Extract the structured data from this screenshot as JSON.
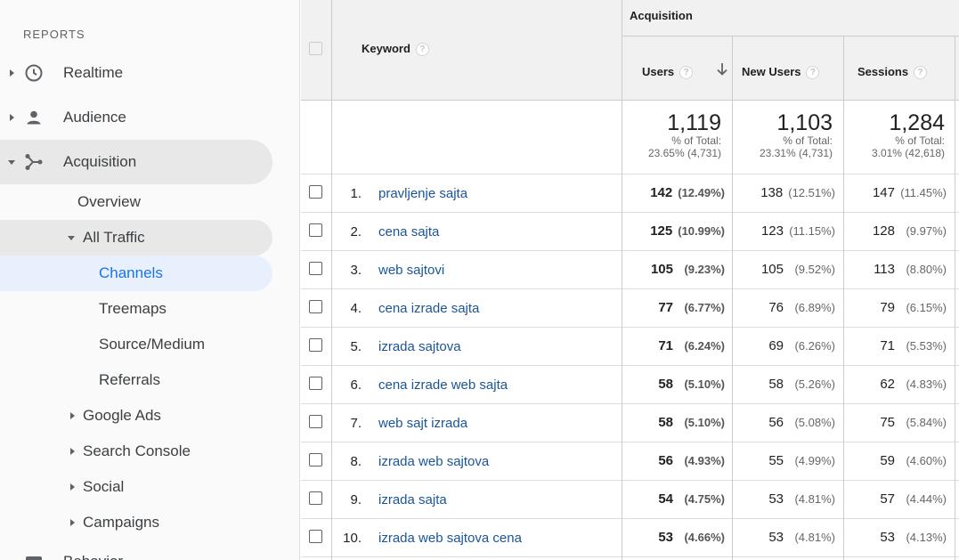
{
  "sidebar": {
    "reports_label": "REPORTS",
    "items": [
      {
        "label": "Realtime",
        "icon": "clock-icon"
      },
      {
        "label": "Audience",
        "icon": "person-icon"
      },
      {
        "label": "Acquisition",
        "icon": "acquisition-icon"
      }
    ],
    "acquisition_children": {
      "overview": "Overview",
      "all_traffic": "All Traffic",
      "all_traffic_children": [
        "Channels",
        "Treemaps",
        "Source/Medium",
        "Referrals"
      ],
      "more": [
        "Google Ads",
        "Search Console",
        "Social",
        "Campaigns"
      ]
    },
    "next_item": "Behavior"
  },
  "table": {
    "group_header": "Acquisition",
    "columns": {
      "keyword": "Keyword",
      "users": "Users",
      "new_users": "New Users",
      "sessions": "Sessions"
    },
    "totals": {
      "users": {
        "value": "1,119",
        "label": "% of Total:",
        "detail": "23.65% (4,731)"
      },
      "new_users": {
        "value": "1,103",
        "label": "% of Total:",
        "detail": "23.31% (4,731)"
      },
      "sessions": {
        "value": "1,284",
        "label": "% of Total:",
        "detail": "3.01% (42,618)"
      }
    },
    "rows": [
      {
        "num": "1.",
        "keyword": "pravljenje sajta",
        "users": "142",
        "users_pct": "(12.49%)",
        "new_users": "138",
        "new_users_pct": "(12.51%)",
        "sessions": "147",
        "sessions_pct": "(11.45%)"
      },
      {
        "num": "2.",
        "keyword": "cena sajta",
        "users": "125",
        "users_pct": "(10.99%)",
        "new_users": "123",
        "new_users_pct": "(11.15%)",
        "sessions": "128",
        "sessions_pct": "(9.97%)"
      },
      {
        "num": "3.",
        "keyword": "web sajtovi",
        "users": "105",
        "users_pct": "(9.23%)",
        "new_users": "105",
        "new_users_pct": "(9.52%)",
        "sessions": "113",
        "sessions_pct": "(8.80%)"
      },
      {
        "num": "4.",
        "keyword": "cena izrade sajta",
        "users": "77",
        "users_pct": "(6.77%)",
        "new_users": "76",
        "new_users_pct": "(6.89%)",
        "sessions": "79",
        "sessions_pct": "(6.15%)"
      },
      {
        "num": "5.",
        "keyword": "izrada sajtova",
        "users": "71",
        "users_pct": "(6.24%)",
        "new_users": "69",
        "new_users_pct": "(6.26%)",
        "sessions": "71",
        "sessions_pct": "(5.53%)"
      },
      {
        "num": "6.",
        "keyword": "cena izrade web sajta",
        "users": "58",
        "users_pct": "(5.10%)",
        "new_users": "58",
        "new_users_pct": "(5.26%)",
        "sessions": "62",
        "sessions_pct": "(4.83%)"
      },
      {
        "num": "7.",
        "keyword": "web sajt izrada",
        "users": "58",
        "users_pct": "(5.10%)",
        "new_users": "56",
        "new_users_pct": "(5.08%)",
        "sessions": "75",
        "sessions_pct": "(5.84%)"
      },
      {
        "num": "8.",
        "keyword": "izrada web sajtova",
        "users": "56",
        "users_pct": "(4.93%)",
        "new_users": "55",
        "new_users_pct": "(4.99%)",
        "sessions": "59",
        "sessions_pct": "(4.60%)"
      },
      {
        "num": "9.",
        "keyword": "izrada sajta",
        "users": "54",
        "users_pct": "(4.75%)",
        "new_users": "53",
        "new_users_pct": "(4.81%)",
        "sessions": "57",
        "sessions_pct": "(4.44%)"
      },
      {
        "num": "10.",
        "keyword": "izrada web sajtova cena",
        "users": "53",
        "users_pct": "(4.66%)",
        "new_users": "53",
        "new_users_pct": "(4.81%)",
        "sessions": "53",
        "sessions_pct": "(4.13%)"
      }
    ]
  },
  "colors": {
    "link": "#1a5597",
    "active_nav": "#1a73e8",
    "active_bg": "#e8f0fe"
  }
}
